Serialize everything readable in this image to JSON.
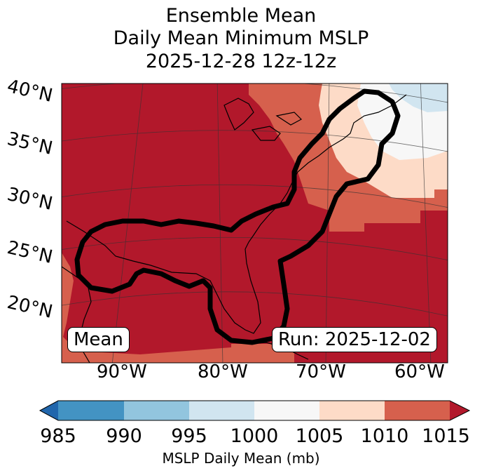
{
  "title": {
    "line1": "Ensemble Mean",
    "line2": "Daily Mean Minimum MSLP",
    "line3": "2025-12-28 12z-12z"
  },
  "map": {
    "lat_labels": [
      "40°N",
      "35°N",
      "30°N",
      "25°N",
      "20°N"
    ],
    "lon_labels": [
      "90°W",
      "80°W",
      "70°W",
      "60°W"
    ],
    "badge_left": "Mean",
    "badge_right": "Run: 2025-12-02"
  },
  "colorbar": {
    "ticks": [
      "985",
      "990",
      "995",
      "1000",
      "1005",
      "1010",
      "1015"
    ],
    "label": "MSLP Daily Mean (mb)",
    "colors": {
      "below": "#2166ac",
      "c985_990": "#4393c3",
      "c990_995": "#92c5de",
      "c995_1000": "#d1e5f0",
      "c1000_1005": "#f7f7f7",
      "c1005_1010": "#fddbc7",
      "c1010_1015": "#d6604d",
      "above": "#b2182b"
    }
  }
}
